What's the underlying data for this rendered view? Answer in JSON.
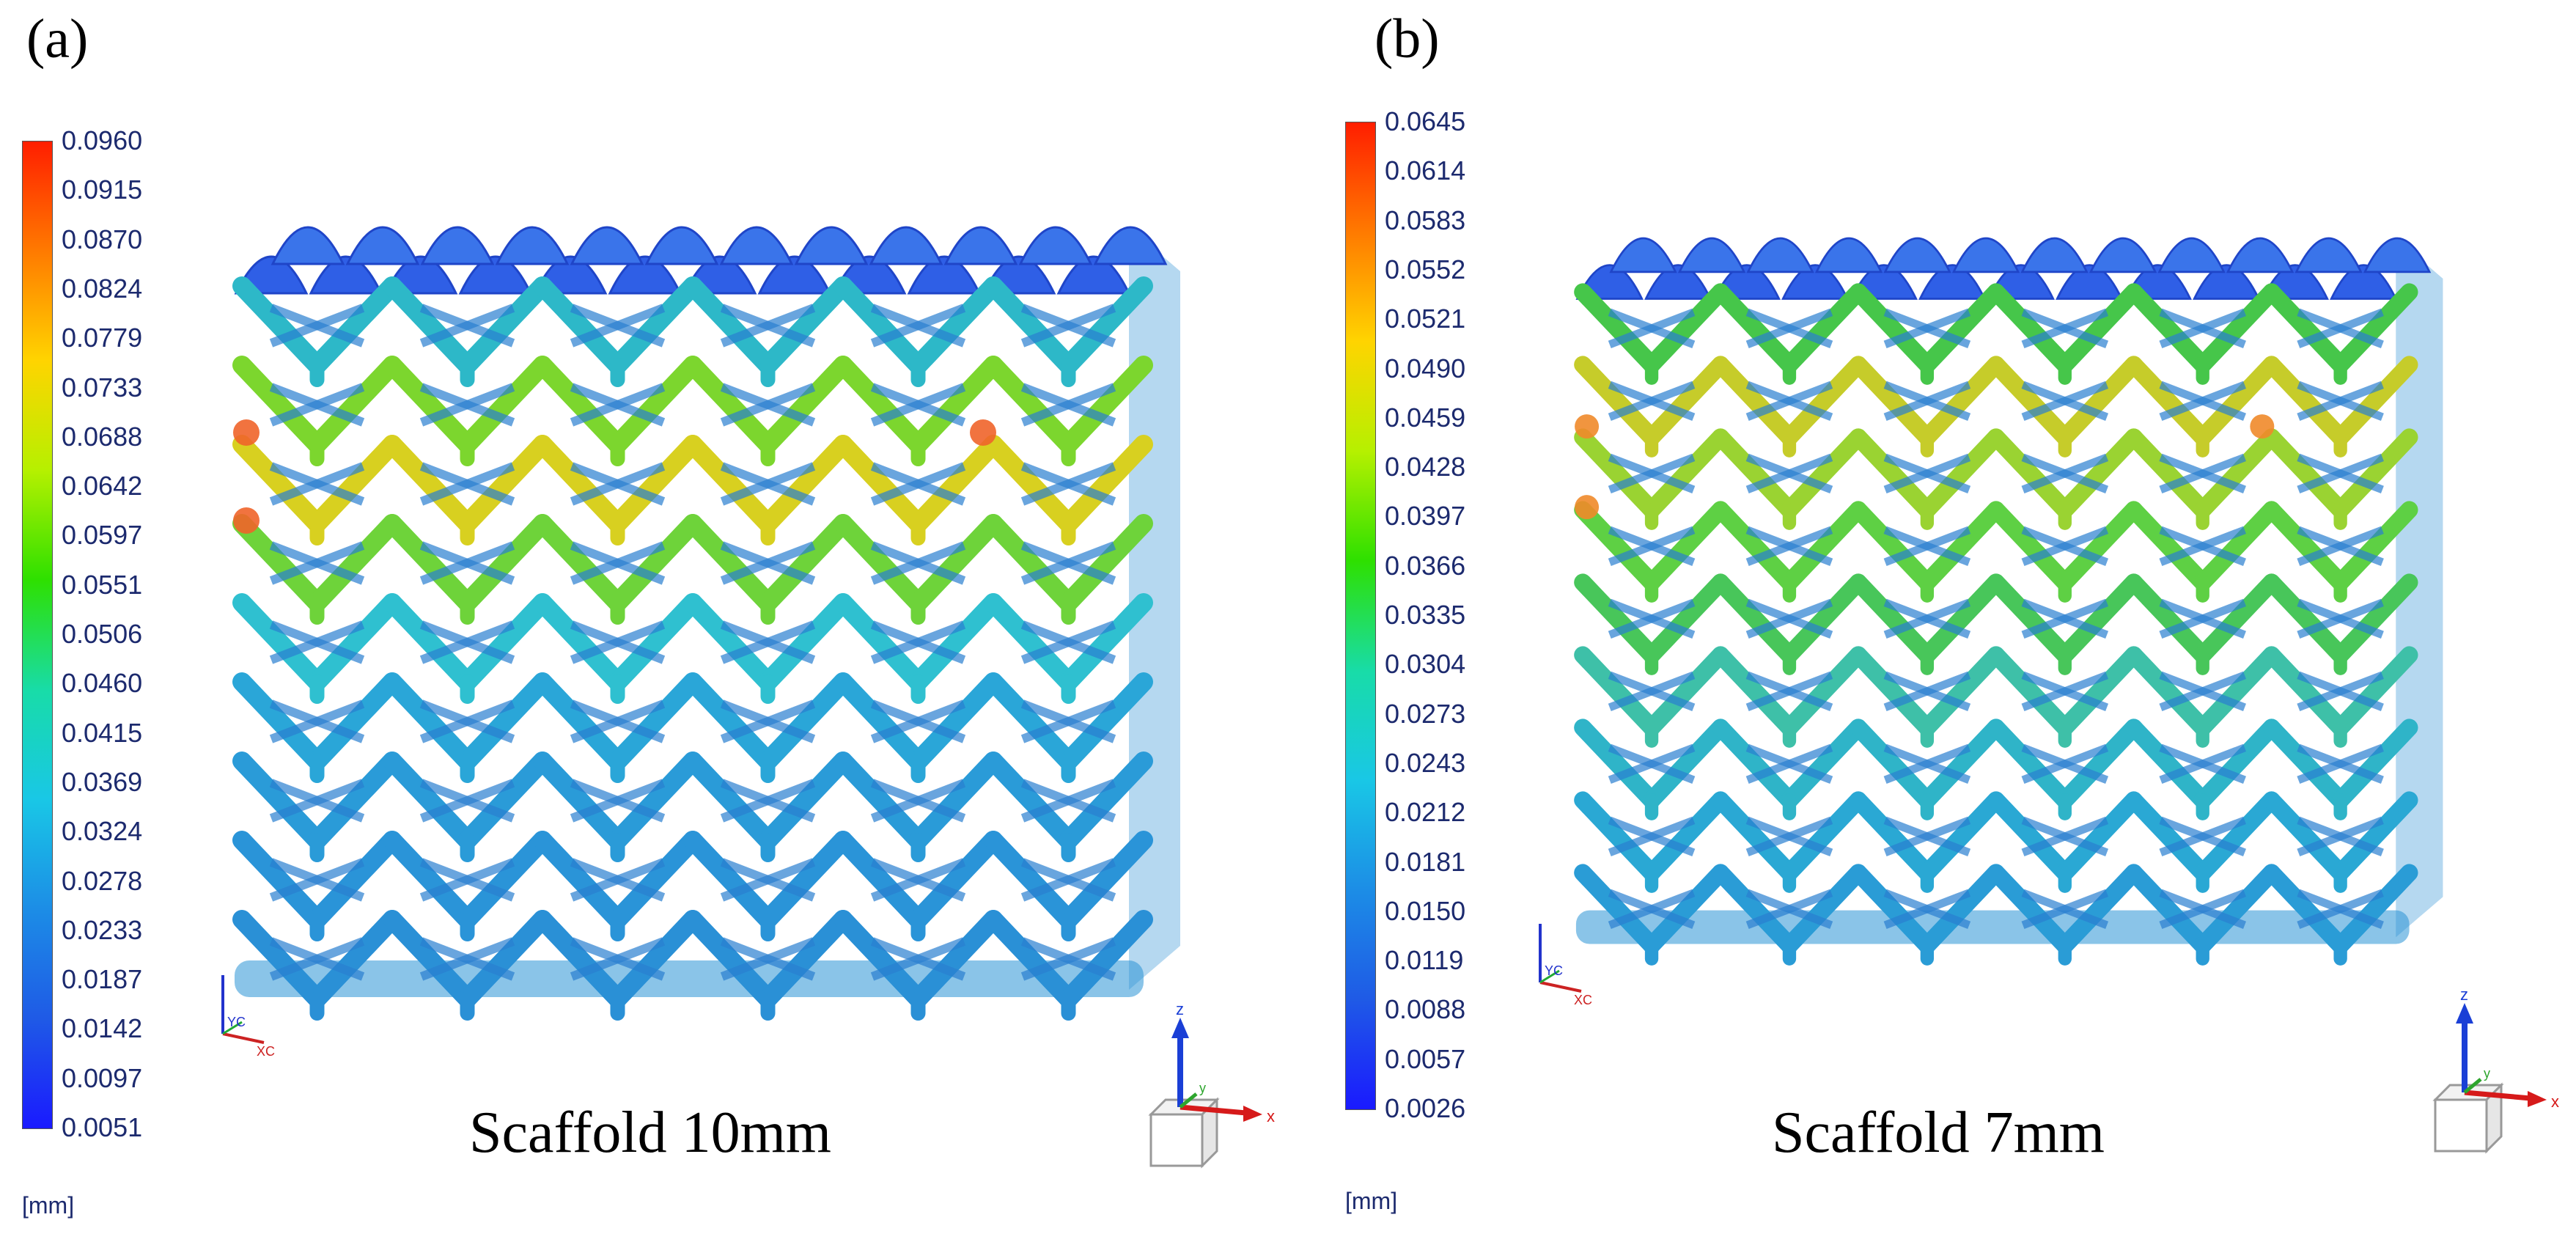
{
  "panels": [
    {
      "letter": "(a)",
      "caption": "Scaffold 10mm",
      "unit": "[mm]",
      "legend_ticks": [
        "0.0960",
        "0.0915",
        "0.0870",
        "0.0824",
        "0.0779",
        "0.0733",
        "0.0688",
        "0.0642",
        "0.0597",
        "0.0551",
        "0.0506",
        "0.0460",
        "0.0415",
        "0.0369",
        "0.0324",
        "0.0278",
        "0.0233",
        "0.0187",
        "0.0142",
        "0.0097",
        "0.0051"
      ],
      "axis_labels": {
        "z": "z",
        "x": "x",
        "y": "y",
        "xc": "XC",
        "yc": "YC"
      }
    },
    {
      "letter": "(b)",
      "caption": "Scaffold 7mm",
      "unit": "[mm]",
      "legend_ticks": [
        "0.0645",
        "0.0614",
        "0.0583",
        "0.0552",
        "0.0521",
        "0.0490",
        "0.0459",
        "0.0428",
        "0.0397",
        "0.0366",
        "0.0335",
        "0.0304",
        "0.0273",
        "0.0243",
        "0.0212",
        "0.0181",
        "0.0150",
        "0.0119",
        "0.0088",
        "0.0057",
        "0.0026"
      ],
      "axis_labels": {
        "z": "z",
        "x": "x",
        "y": "y",
        "xc": "XC",
        "yc": "YC"
      }
    }
  ],
  "colormap": [
    "#ff1e00",
    "#ff7a00",
    "#ffd400",
    "#b6f000",
    "#2ee000",
    "#18dca8",
    "#19c7e6",
    "#1c8de6",
    "#1f5ae6",
    "#1a1aff"
  ]
}
